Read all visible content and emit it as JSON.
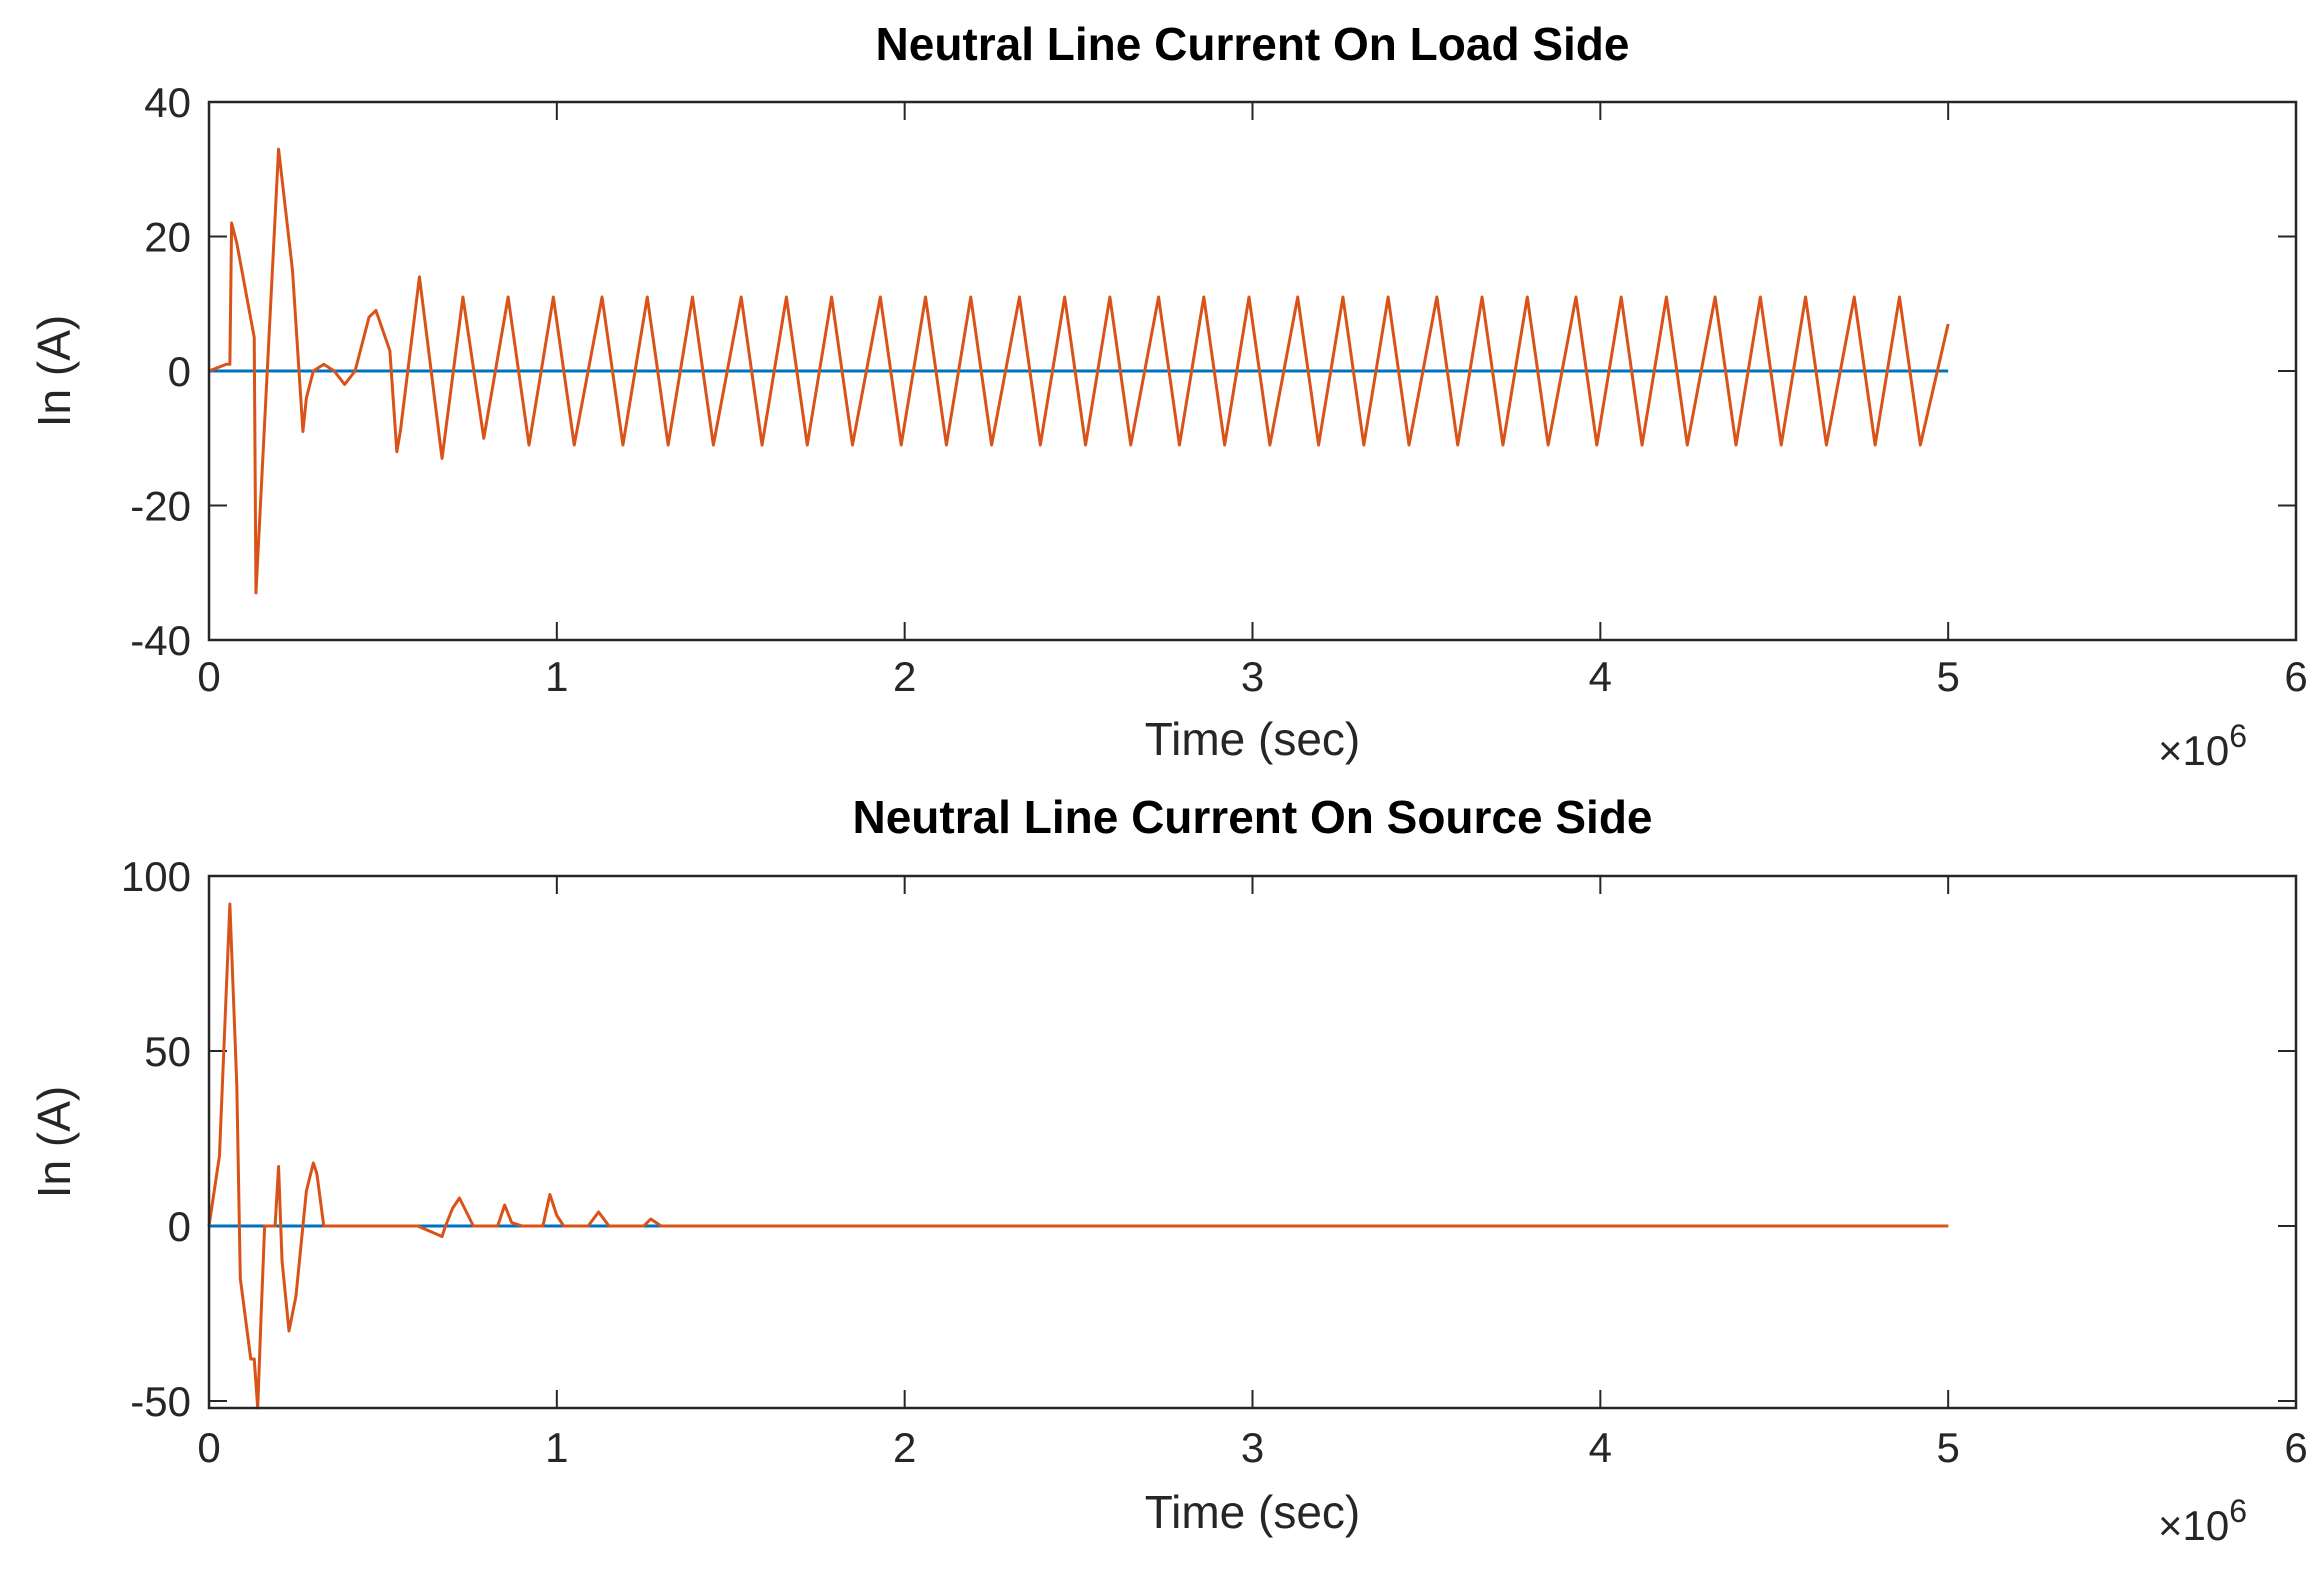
{
  "chart_data": [
    {
      "type": "line",
      "title": "Neutral Line Current On Load Side",
      "xlabel": "Time (sec)",
      "ylabel": "In (A)",
      "x_multiplier": "×10",
      "x_multiplier_power": "6",
      "xlim": [
        0,
        6
      ],
      "xticks": [
        0,
        1,
        2,
        3,
        4,
        5,
        6
      ],
      "ylim": [
        -40,
        40
      ],
      "yticks": [
        -40,
        -20,
        0,
        20,
        40
      ],
      "grid": false,
      "series": [
        {
          "color": "#0072BD",
          "x": [
            0,
            5
          ],
          "values": [
            0,
            0
          ]
        },
        {
          "color": "#D95319",
          "x": [
            0,
            0.05,
            0.06,
            0.065,
            0.08,
            0.13,
            0.135,
            0.2,
            0.24,
            0.27,
            0.28,
            0.3,
            0.33,
            0.36,
            0.39,
            0.42,
            0.46,
            0.48,
            0.52,
            0.54,
            0.55,
            0.605,
            0.67,
            0.73,
            0.79,
            0.86,
            0.92,
            0.99,
            1.05,
            1.13,
            1.19,
            1.26,
            1.32,
            1.39,
            1.45,
            1.53,
            1.59,
            1.66,
            1.72,
            1.79,
            1.85,
            1.93,
            1.99,
            2.06,
            2.12,
            2.19,
            2.25,
            2.33,
            2.39,
            2.46,
            2.52,
            2.59,
            2.65,
            2.73,
            2.79,
            2.86,
            2.92,
            2.99,
            3.05,
            3.13,
            3.19,
            3.26,
            3.32,
            3.39,
            3.45,
            3.53,
            3.59,
            3.66,
            3.72,
            3.79,
            3.85,
            3.93,
            3.99,
            4.06,
            4.12,
            4.19,
            4.25,
            4.33,
            4.39,
            4.46,
            4.52,
            4.59,
            4.65,
            4.73,
            4.79,
            4.86,
            4.92,
            5.0
          ],
          "values": [
            0,
            1,
            1,
            22,
            19,
            5,
            -33,
            33,
            15,
            -9,
            -4,
            0,
            1,
            0,
            -2,
            0,
            8,
            9,
            3,
            -12,
            -9,
            14,
            -13,
            11,
            -10,
            11,
            -11,
            11,
            -11,
            11,
            -11,
            11,
            -11,
            11,
            -11,
            11,
            -11,
            11,
            -11,
            11,
            -11,
            11,
            -11,
            11,
            -11,
            11,
            -11,
            11,
            -11,
            11,
            -11,
            11,
            -11,
            11,
            -11,
            11,
            -11,
            11,
            -11,
            11,
            -11,
            11,
            -11,
            11,
            -11,
            11,
            -11,
            11,
            -11,
            11,
            -11,
            11,
            -11,
            11,
            -11,
            11,
            -11,
            11,
            -11,
            11,
            -11,
            11,
            -11,
            11,
            -11,
            11,
            -11,
            7
          ]
        }
      ]
    },
    {
      "type": "line",
      "title": "Neutral Line Current On Source Side",
      "xlabel": "Time (sec)",
      "ylabel": "In (A)",
      "x_multiplier": "×10",
      "x_multiplier_power": "6",
      "xlim": [
        0,
        6
      ],
      "xticks": [
        0,
        1,
        2,
        3,
        4,
        5,
        6
      ],
      "ylim": [
        -52,
        100
      ],
      "yticks": [
        -50,
        0,
        50,
        100
      ],
      "grid": false,
      "series": [
        {
          "color": "#0072BD",
          "x": [
            0,
            5
          ],
          "values": [
            0,
            0
          ]
        },
        {
          "color": "#D95319",
          "x": [
            0,
            0.03,
            0.06,
            0.08,
            0.09,
            0.12,
            0.13,
            0.14,
            0.15,
            0.16,
            0.19,
            0.2,
            0.21,
            0.23,
            0.25,
            0.28,
            0.3,
            0.31,
            0.33,
            0.6,
            0.67,
            0.68,
            0.7,
            0.72,
            0.74,
            0.76,
            0.83,
            0.85,
            0.87,
            0.9,
            0.96,
            0.98,
            1.0,
            1.02,
            1.09,
            1.12,
            1.15,
            1.25,
            1.27,
            1.3,
            5.0
          ],
          "values": [
            0,
            20,
            92,
            40,
            -15,
            -38,
            -38,
            -52,
            -25,
            0,
            0,
            17,
            -10,
            -30,
            -20,
            10,
            18,
            15,
            0,
            0,
            -3,
            0,
            5,
            8,
            4,
            0,
            0,
            6,
            1,
            0,
            0,
            9,
            3,
            0,
            0,
            4,
            0,
            0,
            2,
            0,
            0
          ]
        }
      ]
    }
  ]
}
